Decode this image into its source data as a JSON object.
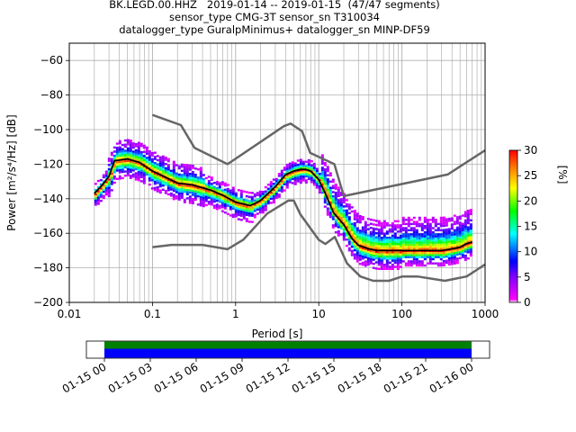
{
  "title": {
    "line1": "BK.LEGD.00.HHZ   2019-01-14 -- 2019-01-15  (47/47 segments)",
    "line2": "sensor_type CMG-3T sensor_sn T310034",
    "line3": "datalogger_type GuralpMinimus+ datalogger_sn MINP-DF59"
  },
  "chart_data": [
    {
      "type": "heatmap",
      "name": "PPSD",
      "xlabel": "Period [s]",
      "ylabel": "Power [m²/s⁴/Hz] [dB]",
      "xscale": "log",
      "xlim": [
        0.01,
        1000
      ],
      "ylim": [
        -200,
        -50
      ],
      "xticks": [
        0.01,
        0.1,
        1,
        10,
        100,
        1000
      ],
      "xtick_labels": [
        "0.01",
        "0.1",
        "1",
        "10",
        "100",
        "1000"
      ],
      "yticks": [
        -200,
        -180,
        -160,
        -140,
        -120,
        -100,
        -80,
        -60
      ],
      "ytick_labels": [
        "−200",
        "−180",
        "−160",
        "−140",
        "−120",
        "−100",
        "−80",
        "−60"
      ],
      "grid": true,
      "colorbar": {
        "label": "[%]",
        "range": [
          0,
          30
        ],
        "ticks": [
          0,
          5,
          10,
          15,
          20,
          25,
          30
        ],
        "tick_labels": [
          "0",
          "5",
          "10",
          "15",
          "20",
          "25",
          "30"
        ]
      },
      "series": [
        {
          "role": "mean",
          "color": "#000000",
          "x": [
            0.02,
            0.025,
            0.03,
            0.035,
            0.05,
            0.07,
            0.1,
            0.15,
            0.2,
            0.3,
            0.5,
            0.7,
            1,
            1.5,
            2,
            3,
            4,
            5,
            6,
            7,
            8,
            10,
            12,
            15,
            20,
            25,
            30,
            40,
            50,
            70,
            100,
            150,
            200,
            300,
            400,
            500,
            600,
            700
          ],
          "y": [
            -137,
            -132,
            -127,
            -118,
            -117,
            -119,
            -124,
            -128,
            -131,
            -132,
            -135,
            -138,
            -142,
            -144,
            -141,
            -133,
            -126,
            -124,
            -123,
            -123,
            -124,
            -129,
            -137,
            -148,
            -155,
            -163,
            -167,
            -169,
            -170,
            -170,
            -170,
            -170,
            -170,
            -170,
            -169,
            -168,
            -166,
            -165
          ]
        },
        {
          "role": "noise_model_high",
          "color": "#666666",
          "x": [
            0.1,
            0.22,
            0.32,
            0.8,
            3.8,
            4.6,
            6.3,
            7.9,
            15.4,
            20,
            354.8,
            1000
          ],
          "y": [
            -91.5,
            -97.4,
            -110.5,
            -120,
            -98,
            -96.5,
            -101,
            -113.5,
            -120,
            -138.5,
            -126,
            -112
          ]
        },
        {
          "role": "noise_model_low",
          "color": "#666666",
          "x": [
            0.1,
            0.17,
            0.4,
            0.8,
            1.24,
            2.4,
            4.3,
            5,
            6,
            10,
            12,
            15.6,
            21.9,
            31.6,
            45,
            70,
            101,
            154,
            328,
            600,
            1000
          ],
          "y": [
            -168,
            -166.7,
            -166.7,
            -169.2,
            -163.7,
            -148.6,
            -141.1,
            -141.1,
            -149,
            -163.8,
            -166.2,
            -162.1,
            -177.5,
            -185,
            -187.5,
            -187.5,
            -185,
            -185,
            -187.5,
            -185,
            -178
          ]
        }
      ]
    },
    {
      "type": "timeline",
      "name": "Data coverage",
      "xtick_labels": [
        "01-15 00",
        "01-15 03",
        "01-15 06",
        "01-15 09",
        "01-15 12",
        "01-15 15",
        "01-15 18",
        "01-15 21",
        "01-16 00"
      ],
      "coverage_start_hour": 0,
      "coverage_end_hour": 24,
      "bars": [
        {
          "role": "data",
          "color": "#0000ff"
        },
        {
          "role": "used",
          "color": "#008000"
        }
      ]
    }
  ]
}
